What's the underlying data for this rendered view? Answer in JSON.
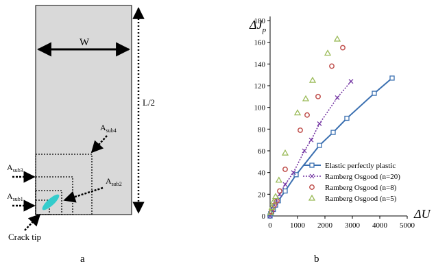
{
  "panel_a": {
    "caption": "a",
    "width_label": "W",
    "height_label": "L/2",
    "crack_tip_label": "Crack tip",
    "subregions": [
      {
        "label": "A",
        "sub": "sub4"
      },
      {
        "label": "A",
        "sub": "sub3"
      },
      {
        "label": "A",
        "sub": "sub2"
      },
      {
        "label": "A",
        "sub": "sub1"
      }
    ],
    "colors": {
      "plate": "#d9d9d9",
      "crack": "#33cccc"
    }
  },
  "panel_b": {
    "caption": "b"
  },
  "chart_data": {
    "type": "scatter",
    "ylabel": "ΔJ",
    "ylabel_sub": "p",
    "xlabel": "ΔU",
    "xlim": [
      0,
      5000
    ],
    "ylim": [
      0,
      180
    ],
    "x_ticks": [
      "0",
      "1000",
      "2000",
      "3000",
      "4000",
      "5000"
    ],
    "y_ticks": [
      "0",
      "20",
      "40",
      "60",
      "80",
      "100",
      "120",
      "140",
      "160",
      "180"
    ],
    "grid": false,
    "legend_position": "bottom-right",
    "series": [
      {
        "name": "Elastic perfectly plastic",
        "marker": "square",
        "line": "solid",
        "color": "#3a6fb0",
        "x": [
          0,
          20,
          60,
          120,
          200,
          300,
          550,
          950,
          1800,
          2300,
          2800,
          3800,
          4450
        ],
        "y": [
          0,
          2,
          4,
          6,
          10,
          14,
          23,
          38,
          65,
          77,
          90,
          113,
          127
        ]
      },
      {
        "name": "Ramberg Osgood (n=20)",
        "marker": "x",
        "line": "dotted",
        "color": "#7030a0",
        "x": [
          0,
          100,
          200,
          350,
          550,
          850,
          1250,
          1500,
          1800,
          2450,
          2950
        ],
        "y": [
          0,
          6,
          12,
          20,
          29,
          40,
          60,
          70,
          85,
          109,
          124
        ]
      },
      {
        "name": "Ramberg Osgood (n=8)",
        "marker": "circle",
        "line": "none",
        "color": "#c0504d",
        "x": [
          50,
          150,
          250,
          350,
          550,
          1100,
          1350,
          1750,
          2250,
          2650
        ],
        "y": [
          4,
          10,
          14,
          23,
          43,
          79,
          93,
          110,
          138,
          155
        ]
      },
      {
        "name": "Ramberg Osgood (n=5)",
        "marker": "triangle",
        "line": "none",
        "color": "#9bbb59",
        "x": [
          20,
          70,
          120,
          200,
          320,
          550,
          1000,
          1300,
          1550,
          2100,
          2450
        ],
        "y": [
          3,
          8,
          13,
          18,
          33,
          58,
          95,
          108,
          125,
          150,
          163
        ]
      }
    ]
  }
}
